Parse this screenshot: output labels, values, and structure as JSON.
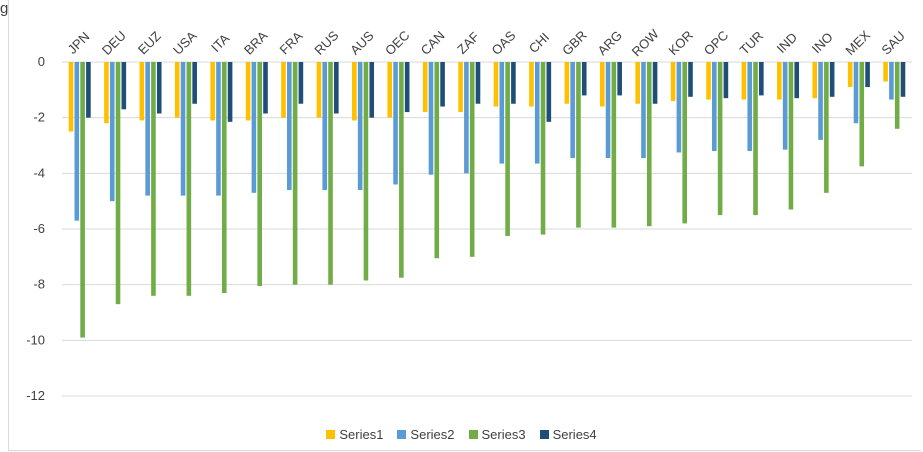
{
  "top_label": "g",
  "chart_data": {
    "type": "bar",
    "title": "",
    "xlabel": "",
    "ylabel": "",
    "ylim": [
      -12,
      0
    ],
    "yticks": [
      0,
      -2,
      -4,
      -6,
      -8,
      -10,
      -12
    ],
    "grid": true,
    "legend_position": "bottom",
    "categories": [
      "JPN",
      "DEU",
      "EUZ",
      "USA",
      "ITA",
      "BRA",
      "FRA",
      "RUS",
      "AUS",
      "OEC",
      "CAN",
      "ZAF",
      "OAS",
      "CHI",
      "GBR",
      "ARG",
      "ROW",
      "KOR",
      "OPC",
      "TUR",
      "IND",
      "INO",
      "MEX",
      "SAU"
    ],
    "series": [
      {
        "name": "Series1",
        "color": "#FFC000",
        "values": [
          -2.5,
          -2.2,
          -2.1,
          -2.0,
          -2.1,
          -2.1,
          -2.0,
          -2.0,
          -2.1,
          -2.0,
          -1.8,
          -1.8,
          -1.6,
          -1.6,
          -1.5,
          -1.6,
          -1.5,
          -1.4,
          -1.35,
          -1.35,
          -1.35,
          -1.3,
          -0.9,
          -0.7
        ]
      },
      {
        "name": "Series2",
        "color": "#5B9BD5",
        "values": [
          -5.7,
          -5.0,
          -4.8,
          -4.8,
          -4.8,
          -4.7,
          -4.6,
          -4.6,
          -4.6,
          -4.4,
          -4.05,
          -4.0,
          -3.65,
          -3.65,
          -3.45,
          -3.45,
          -3.45,
          -3.25,
          -3.2,
          -3.2,
          -3.15,
          -2.8,
          -2.2,
          -1.35
        ]
      },
      {
        "name": "Series3",
        "color": "#70AD47",
        "values": [
          -9.9,
          -8.7,
          -8.4,
          -8.4,
          -8.3,
          -8.05,
          -8.0,
          -8.0,
          -7.85,
          -7.75,
          -7.05,
          -7.0,
          -6.25,
          -6.2,
          -5.95,
          -5.95,
          -5.9,
          -5.8,
          -5.5,
          -5.5,
          -5.3,
          -4.7,
          -3.75,
          -2.4
        ]
      },
      {
        "name": "Series4",
        "color": "#1F4E79",
        "values": [
          -2.0,
          -1.7,
          -1.85,
          -1.5,
          -2.15,
          -1.85,
          -1.5,
          -1.85,
          -2.0,
          -1.8,
          -1.6,
          -1.5,
          -1.5,
          -2.15,
          -1.2,
          -1.2,
          -1.5,
          -1.25,
          -1.3,
          -1.2,
          -1.3,
          -1.25,
          -0.9,
          -1.25
        ]
      }
    ]
  }
}
